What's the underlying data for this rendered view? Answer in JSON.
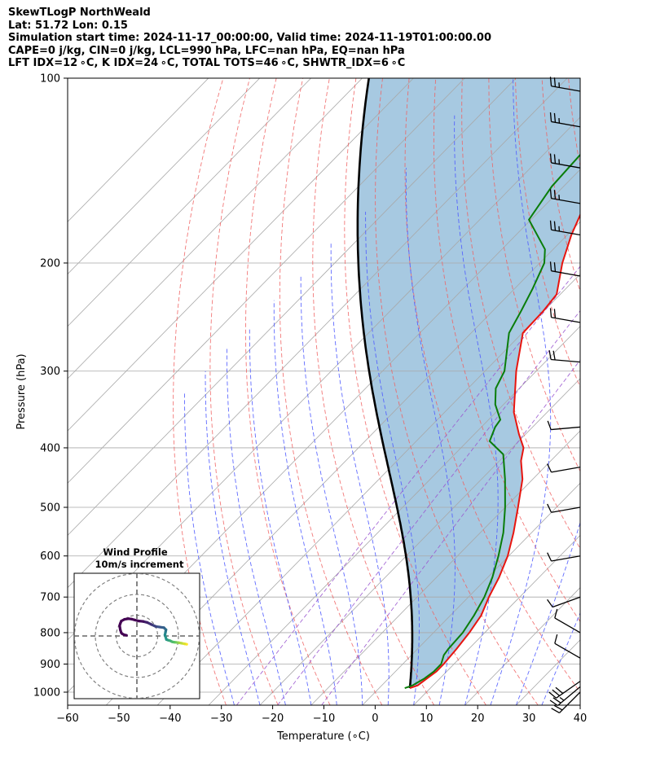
{
  "header": {
    "line1": "SkewTLogP NorthWeald",
    "line2": "Lat: 51.72   Lon: 0.15",
    "line3": "Simulation start time: 2024-11-17_00:00:00, Valid time: 2024-11-19T01:00:00.00",
    "line4": "CAPE=0 j/kg, CIN=0 j/kg, LCL=990 hPa, LFC=nan hPa, EQ=nan hPa",
    "line5": "LFT IDX=12 ∘C, K IDX=24 ∘C, TOTAL TOTS=46 ∘C, SHWTR_IDX=6 ∘C"
  },
  "colors": {
    "temperature": "#e8150f",
    "dewpoint": "#0a7d0a",
    "parcel": "#000000",
    "cape_fill": "#a2c6df",
    "dry_adiabat": "#f06060",
    "moist_adiabat": "#4f5bff",
    "isotherm": "#a8a8a8",
    "mixing_ratio": "#9b59d0"
  },
  "chart_data": {
    "type": "skewt",
    "xlabel": "Temperature (∘C)",
    "ylabel": "Pressure (hPa)",
    "xlim": [
      -60,
      40
    ],
    "ylim": [
      1050,
      100
    ],
    "xticks": [
      -60,
      -50,
      -40,
      -30,
      -20,
      -10,
      0,
      10,
      20,
      30,
      40
    ],
    "xtick_labels": [
      "−60",
      "−50",
      "−40",
      "−30",
      "−20",
      "−10",
      "0",
      "10",
      "20",
      "30",
      "40"
    ],
    "yticks": [
      1000,
      900,
      800,
      700,
      600,
      500,
      400,
      300,
      200,
      100
    ],
    "temperature": [
      [
        985,
        6.0
      ],
      [
        975,
        7.0
      ],
      [
        950,
        7.5
      ],
      [
        925,
        8.0
      ],
      [
        900,
        8.0
      ],
      [
        850,
        7.6
      ],
      [
        800,
        7.0
      ],
      [
        750,
        6.0
      ],
      [
        700,
        4.0
      ],
      [
        650,
        2.2
      ],
      [
        600,
        -0.2
      ],
      [
        550,
        -3.5
      ],
      [
        500,
        -7.5
      ],
      [
        450,
        -12.0
      ],
      [
        420,
        -15.8
      ],
      [
        400,
        -17.8
      ],
      [
        380,
        -21.3
      ],
      [
        350,
        -26.5
      ],
      [
        300,
        -33.9
      ],
      [
        260,
        -39.9
      ],
      [
        240,
        -40.1
      ],
      [
        225,
        -40.7
      ],
      [
        200,
        -45.6
      ],
      [
        180,
        -49.2
      ],
      [
        160,
        -52.5
      ],
      [
        140,
        -55.6
      ],
      [
        120,
        -58.2
      ],
      [
        100,
        -61.5
      ]
    ],
    "dewpoint": [
      [
        985,
        5.0
      ],
      [
        975,
        6.0
      ],
      [
        950,
        7.0
      ],
      [
        925,
        7.5
      ],
      [
        900,
        7.5
      ],
      [
        870,
        6.3
      ],
      [
        850,
        6.0
      ],
      [
        800,
        5.7
      ],
      [
        750,
        4.6
      ],
      [
        700,
        3.1
      ],
      [
        650,
        0.9
      ],
      [
        600,
        -2.0
      ],
      [
        550,
        -5.5
      ],
      [
        500,
        -10.0
      ],
      [
        450,
        -15.4
      ],
      [
        410,
        -20.5
      ],
      [
        390,
        -25.7
      ],
      [
        370,
        -27.3
      ],
      [
        360,
        -27.7
      ],
      [
        340,
        -31.6
      ],
      [
        320,
        -34.6
      ],
      [
        300,
        -36.2
      ],
      [
        260,
        -42.6
      ],
      [
        240,
        -44.4
      ],
      [
        220,
        -46.5
      ],
      [
        200,
        -49.1
      ],
      [
        190,
        -51.6
      ],
      [
        170,
        -60.4
      ],
      [
        150,
        -62.3
      ],
      [
        125,
        -63.1
      ],
      [
        100,
        -65.2
      ]
    ],
    "parcel_start": [
      985,
      6.0
    ],
    "wind_barbs": [
      [
        1000,
        225,
        20
      ],
      [
        980,
        230,
        25
      ],
      [
        960,
        235,
        30
      ],
      [
        880,
        300,
        10
      ],
      [
        800,
        300,
        10
      ],
      [
        700,
        250,
        10
      ],
      [
        600,
        260,
        10
      ],
      [
        500,
        260,
        10
      ],
      [
        430,
        260,
        12
      ],
      [
        370,
        265,
        12
      ],
      [
        290,
        275,
        20
      ],
      [
        250,
        280,
        20
      ],
      [
        210,
        280,
        20
      ],
      [
        180,
        280,
        25
      ],
      [
        160,
        280,
        25
      ],
      [
        140,
        280,
        25
      ],
      [
        120,
        280,
        25
      ],
      [
        105,
        280,
        25
      ]
    ],
    "wind_profile": {
      "title": "Wind Profile",
      "subtitle": "10m/s increment",
      "rings_ms": [
        10,
        20,
        30
      ],
      "hodograph_uv": [
        [
          24.0,
          -4.0
        ],
        [
          23.0,
          -3.8
        ],
        [
          21.5,
          -3.5
        ],
        [
          20.0,
          -3.2
        ],
        [
          19.0,
          -3.1
        ],
        [
          18.0,
          -3.0
        ],
        [
          17.0,
          -2.8
        ],
        [
          16.0,
          -2.3
        ],
        [
          15.0,
          -2.0
        ],
        [
          14.2,
          -1.7
        ],
        [
          13.5,
          0.5
        ],
        [
          13.8,
          2.0
        ],
        [
          14.0,
          3.0
        ],
        [
          13.0,
          4.0
        ],
        [
          11.0,
          4.3
        ],
        [
          9.0,
          4.6
        ],
        [
          7.0,
          5.5
        ],
        [
          5.0,
          6.5
        ],
        [
          3.0,
          7.0
        ],
        [
          1.0,
          7.2
        ],
        [
          -1.0,
          7.7
        ],
        [
          -2.5,
          8.1
        ],
        [
          -4.0,
          8.3
        ],
        [
          -6.0,
          8.0
        ],
        [
          -7.5,
          7.2
        ],
        [
          -8.0,
          6.0
        ],
        [
          -8.3,
          5.0
        ],
        [
          -8.0,
          3.0
        ],
        [
          -7.5,
          1.5
        ],
        [
          -7.0,
          1.0
        ],
        [
          -6.0,
          0.5
        ],
        [
          -5.0,
          0.3
        ]
      ]
    }
  }
}
